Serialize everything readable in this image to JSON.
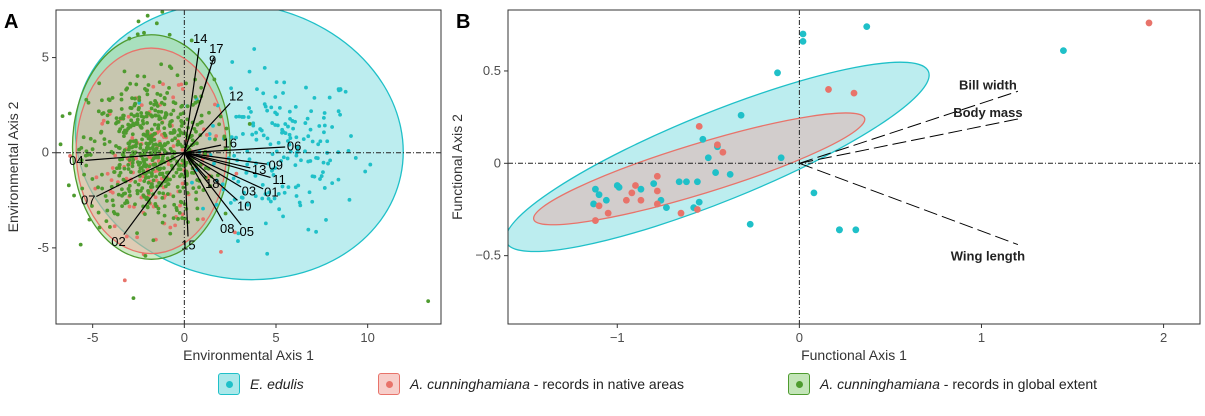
{
  "colors": {
    "edulis": "#1fc0c8",
    "native": "#e8736a",
    "global": "#4e9b2f",
    "edulis_fill": "#5fd3d8",
    "native_fill": "#f0a39c",
    "global_fill": "#8fcf7a"
  },
  "legend": [
    {
      "species": "E. edulis",
      "suffix": "",
      "color_key": "edulis"
    },
    {
      "species": "A. cunninghamiana",
      "suffix": " - records in native areas",
      "color_key": "native"
    },
    {
      "species": "A. cunninghamiana",
      "suffix": " -  records in global extent",
      "color_key": "global"
    }
  ],
  "chart_data": [
    {
      "type": "scatter",
      "panel": "A",
      "xlabel": "Environmental Axis 1",
      "ylabel": "Environmental Axis 2",
      "xlim": [
        -7,
        14
      ],
      "ylim": [
        -9,
        7.5
      ],
      "xticks": [
        -5,
        0,
        5,
        10
      ],
      "yticks": [
        -5,
        0,
        5
      ],
      "grid": false,
      "reference_lines": {
        "x": 0,
        "y": 0
      },
      "ellipses": [
        {
          "group": "edulis",
          "cx": 3,
          "cy": 0.6,
          "rx": 9,
          "ry": 7.2,
          "angle_deg": -12
        },
        {
          "group": "global",
          "cx": -1.8,
          "cy": 0.3,
          "rx": 4.3,
          "ry": 5.9,
          "angle_deg": 0
        },
        {
          "group": "native",
          "cx": -1.8,
          "cy": 0.1,
          "rx": 4.1,
          "ry": 5.4,
          "angle_deg": 0
        }
      ],
      "vectors": [
        {
          "label": "14",
          "x": 0.8,
          "y": 5.5
        },
        {
          "label": "17",
          "x": 1.6,
          "y": 5.0
        },
        {
          "label": "9",
          "x": 1.4,
          "y": 4.4
        },
        {
          "label": "12",
          "x": 2.5,
          "y": 2.6
        },
        {
          "label": "16",
          "x": 2.0,
          "y": 0.4
        },
        {
          "label": "06",
          "x": 5.5,
          "y": 0.3
        },
        {
          "label": "04",
          "x": -5.4,
          "y": -0.4
        },
        {
          "label": "09",
          "x": 4.5,
          "y": -0.6
        },
        {
          "label": "13",
          "x": 3.6,
          "y": -0.8
        },
        {
          "label": "11",
          "x": 4.7,
          "y": -1.3
        },
        {
          "label": "18",
          "x": 1.2,
          "y": -1.3
        },
        {
          "label": "03",
          "x": 3.1,
          "y": -1.8
        },
        {
          "label": "01",
          "x": 4.3,
          "y": -1.9
        },
        {
          "label": "10",
          "x": 2.9,
          "y": -2.5
        },
        {
          "label": "07",
          "x": -4.8,
          "y": -2.3
        },
        {
          "label": "08",
          "x": 2.1,
          "y": -3.6
        },
        {
          "label": "05",
          "x": 3.1,
          "y": -3.8
        },
        {
          "label": "02",
          "x": -3.3,
          "y": -4.3
        },
        {
          "label": "15",
          "x": 0.2,
          "y": -4.4
        }
      ],
      "series": [
        {
          "name": "E. edulis",
          "group": "edulis",
          "n": 190,
          "cx": 5.2,
          "cy": 0.2,
          "sx": 2.2,
          "sy": 2.1
        },
        {
          "name": "A. cunninghamiana - records in native areas",
          "group": "native",
          "n": 130,
          "cx": -1.6,
          "cy": -0.6,
          "sx": 1.6,
          "sy": 1.8
        },
        {
          "name": "A. cunninghamiana - records in global extent",
          "group": "global",
          "n": 560,
          "cx": -1.8,
          "cy": 0.0,
          "sx": 1.7,
          "sy": 1.9,
          "extra_points": [
            [
              -2,
              7.2
            ],
            [
              -1.5,
              6.8
            ],
            [
              -2.5,
              6.9
            ],
            [
              -1.2,
              7.4
            ],
            [
              -2.2,
              6.3
            ],
            [
              -0.8,
              6.2
            ],
            [
              -3.0,
              6.0
            ],
            [
              0.4,
              5.9
            ],
            [
              13.3,
              -7.8
            ],
            [
              -1.6,
              7.6
            ]
          ]
        }
      ]
    },
    {
      "type": "scatter",
      "panel": "B",
      "xlabel": "Functional Axis 1",
      "ylabel": "Functional Axis 2",
      "xlim": [
        -1.6,
        2.2
      ],
      "ylim": [
        -0.87,
        0.83
      ],
      "xticks": [
        -1,
        0,
        1,
        2
      ],
      "yticks": [
        -0.5,
        0.0,
        0.5
      ],
      "grid": false,
      "reference_lines": {
        "x": 0,
        "y": 0
      },
      "ellipses": [
        {
          "group": "edulis",
          "cx": -0.45,
          "cy": 0.035,
          "rx": 1.25,
          "ry": 0.24,
          "angle_deg": 22
        },
        {
          "group": "native",
          "cx": -0.55,
          "cy": -0.03,
          "rx": 0.95,
          "ry": 0.135,
          "angle_deg": 17
        }
      ],
      "vectors": [
        {
          "label": "Bill width",
          "x": 1.2,
          "y": 0.39
        },
        {
          "label": "Body mass",
          "x": 1.2,
          "y": 0.24
        },
        {
          "label": "Wing length",
          "x": 1.2,
          "y": -0.44
        }
      ],
      "series": [
        {
          "name": "E. edulis",
          "group": "edulis",
          "points": [
            [
              0.02,
              0.7
            ],
            [
              0.02,
              0.66
            ],
            [
              0.37,
              0.74
            ],
            [
              1.45,
              0.61
            ],
            [
              -0.12,
              0.49
            ],
            [
              -0.32,
              0.26
            ],
            [
              -0.53,
              0.13
            ],
            [
              -0.1,
              0.03
            ],
            [
              -0.45,
              0.09
            ],
            [
              -0.5,
              0.03
            ],
            [
              -0.46,
              -0.05
            ],
            [
              -0.56,
              -0.1
            ],
            [
              -0.66,
              -0.1
            ],
            [
              -0.8,
              -0.11
            ],
            [
              -0.87,
              -0.14
            ],
            [
              -1.12,
              -0.14
            ],
            [
              -1.1,
              -0.17
            ],
            [
              -1.13,
              -0.22
            ],
            [
              -1.06,
              -0.2
            ],
            [
              -0.76,
              -0.2
            ],
            [
              -0.73,
              -0.24
            ],
            [
              -0.58,
              -0.24
            ],
            [
              -0.55,
              -0.21
            ],
            [
              -0.27,
              -0.33
            ],
            [
              0.22,
              -0.36
            ],
            [
              0.22,
              -0.36
            ],
            [
              0.31,
              -0.36
            ],
            [
              0.08,
              -0.16
            ],
            [
              -1.0,
              -0.12
            ],
            [
              -0.99,
              -0.13
            ],
            [
              -0.62,
              -0.1
            ],
            [
              -0.38,
              -0.06
            ]
          ]
        },
        {
          "name": "A. cunninghamiana - records in native areas",
          "group": "native",
          "points": [
            [
              1.92,
              0.76
            ],
            [
              0.16,
              0.4
            ],
            [
              0.3,
              0.38
            ],
            [
              -0.55,
              0.2
            ],
            [
              -0.45,
              0.1
            ],
            [
              -0.42,
              0.06
            ],
            [
              -0.78,
              -0.07
            ],
            [
              -0.9,
              -0.12
            ],
            [
              -0.92,
              -0.16
            ],
            [
              -0.78,
              -0.15
            ],
            [
              -1.1,
              -0.23
            ],
            [
              -1.05,
              -0.27
            ],
            [
              -1.12,
              -0.31
            ],
            [
              -0.87,
              -0.2
            ],
            [
              -0.78,
              -0.22
            ],
            [
              -0.65,
              -0.27
            ],
            [
              -0.56,
              -0.25
            ],
            [
              -0.95,
              -0.2
            ]
          ]
        }
      ]
    }
  ]
}
